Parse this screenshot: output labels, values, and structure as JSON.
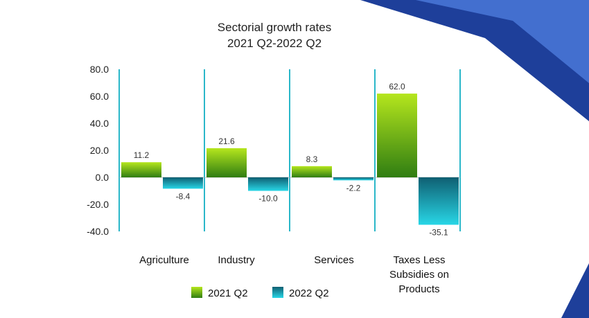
{
  "chart_data": {
    "type": "bar",
    "title": [
      "Sectorial growth rates",
      "2021 Q2-2022 Q2"
    ],
    "categories": [
      [
        "Agriculture"
      ],
      [
        "Industry"
      ],
      [
        "Services"
      ],
      [
        "Taxes Less",
        "Subsidies on",
        "Products"
      ]
    ],
    "series": [
      {
        "name": "2021 Q2",
        "values": [
          11.2,
          21.6,
          8.3,
          62.0
        ],
        "labels": [
          "11.2",
          "21.6",
          "8.3",
          "62.0"
        ]
      },
      {
        "name": "2022 Q2",
        "values": [
          -8.4,
          -10.0,
          -2.2,
          -35.1
        ],
        "labels": [
          "-8.4",
          "-10.0",
          "-2.2",
          "-35.1"
        ]
      }
    ],
    "yticks": [
      "80.0",
      "60.0",
      "40.0",
      "20.0",
      "0.0",
      "-20.0",
      "-40.0"
    ],
    "ylim": [
      -40,
      80
    ],
    "legend_position": "bottom",
    "colors": {
      "series1_top": "#b5e61d",
      "series1_bottom": "#2f7d12",
      "series2_top": "#0f5f72",
      "series2_bottom": "#28d6e6",
      "separator": "#2ab7c9",
      "corner_dark": "#1e3f9a",
      "corner_light": "#4a78d8"
    }
  }
}
